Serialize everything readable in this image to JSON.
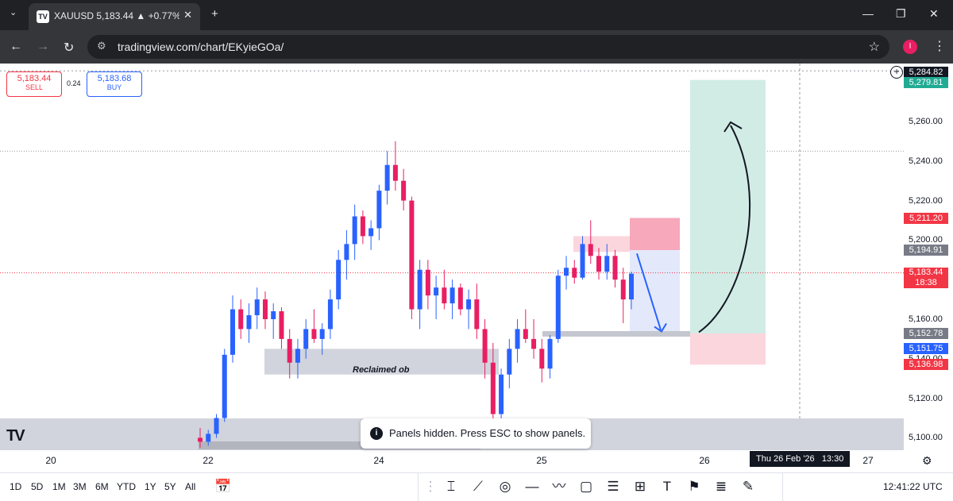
{
  "browser": {
    "tab_title": "XAUUSD 5,183.44 ▲ +0.77% Un",
    "tab_close": "✕",
    "new_tab": "+",
    "url": "tradingview.com/chart/EKyieGOa/",
    "profile_initial": "I"
  },
  "trade_panel": {
    "sell_price": "5,183.44",
    "sell_label": "SELL",
    "spread": "0.24",
    "buy_price": "5,183.68",
    "buy_label": "BUY"
  },
  "price_axis": {
    "labels": [
      "5,260.00",
      "5,240.00",
      "5,220.00",
      "5,200.00",
      "5,160.00",
      "5,120.00",
      "5,100.00"
    ],
    "crosshair_price": "5,284.82",
    "tp_price": "5,279.81",
    "entry_zone_top": "5,211.20",
    "entry_zone_bottom": "5,194.91",
    "last_price": "5,183.44",
    "countdown": "18:38",
    "stop_level": "5,152.78",
    "support_level": "5,151.75",
    "hidden_label": "5,140.00",
    "sl_price": "5,136.98"
  },
  "time_axis": {
    "labels": [
      "20",
      "22",
      "24",
      "25",
      "26",
      "27"
    ],
    "crosshair_time": "Thu 26 Feb '26   13:30"
  },
  "annotations": {
    "reclaimed_ob": "Reclaimed ob"
  },
  "toast": {
    "text": "Panels hidden. Press ESC to show panels."
  },
  "bottom_toolbar": {
    "ranges": [
      "1D",
      "5D",
      "1M",
      "3M",
      "6M",
      "YTD",
      "1Y",
      "5Y",
      "All"
    ],
    "clock": "12:41:22 UTC"
  },
  "colors": {
    "bull": "#2962ff",
    "bear": "#e91e63",
    "tp_zone": "#d1ece5",
    "sl_zone": "#fbd6dd",
    "tag_red": "#f23645",
    "tag_gray": "#787b86",
    "tag_green": "#22ab94"
  },
  "icons": [
    "tradingview-logo-icon",
    "info-icon",
    "crosshair-plus-icon",
    "settings-gear-icon"
  ],
  "chart_data": {
    "type": "candlestick",
    "symbol": "XAUUSD",
    "ylim": [
      5095,
      5290
    ],
    "x_ticks": [
      "20",
      "22",
      "24",
      "25",
      "26",
      "27"
    ],
    "candles_ohlc": [
      [
        5100,
        5105,
        5095,
        5098
      ],
      [
        5098,
        5104,
        5096,
        5102
      ],
      [
        5102,
        5112,
        5100,
        5110
      ],
      [
        5110,
        5145,
        5108,
        5142
      ],
      [
        5142,
        5172,
        5138,
        5165
      ],
      [
        5165,
        5170,
        5150,
        5155
      ],
      [
        5155,
        5168,
        5148,
        5162
      ],
      [
        5162,
        5176,
        5155,
        5170
      ],
      [
        5170,
        5174,
        5155,
        5160
      ],
      [
        5160,
        5168,
        5150,
        5164
      ],
      [
        5164,
        5166,
        5145,
        5150
      ],
      [
        5150,
        5155,
        5130,
        5138
      ],
      [
        5138,
        5150,
        5130,
        5145
      ],
      [
        5145,
        5160,
        5140,
        5155
      ],
      [
        5155,
        5165,
        5148,
        5150
      ],
      [
        5150,
        5158,
        5142,
        5155
      ],
      [
        5155,
        5175,
        5150,
        5170
      ],
      [
        5170,
        5195,
        5165,
        5190
      ],
      [
        5190,
        5205,
        5180,
        5198
      ],
      [
        5198,
        5218,
        5190,
        5212
      ],
      [
        5212,
        5215,
        5198,
        5202
      ],
      [
        5202,
        5210,
        5195,
        5206
      ],
      [
        5206,
        5228,
        5200,
        5225
      ],
      [
        5225,
        5245,
        5218,
        5238
      ],
      [
        5238,
        5250,
        5225,
        5230
      ],
      [
        5230,
        5236,
        5215,
        5220
      ],
      [
        5220,
        5222,
        5160,
        5165
      ],
      [
        5165,
        5190,
        5155,
        5185
      ],
      [
        5185,
        5190,
        5165,
        5172
      ],
      [
        5172,
        5182,
        5160,
        5176
      ],
      [
        5176,
        5185,
        5165,
        5168
      ],
      [
        5168,
        5180,
        5160,
        5176
      ],
      [
        5176,
        5178,
        5162,
        5165
      ],
      [
        5165,
        5175,
        5155,
        5170
      ],
      [
        5170,
        5178,
        5150,
        5155
      ],
      [
        5155,
        5160,
        5130,
        5138
      ],
      [
        5138,
        5148,
        5108,
        5112
      ],
      [
        5112,
        5135,
        5108,
        5132
      ],
      [
        5132,
        5150,
        5125,
        5145
      ],
      [
        5145,
        5160,
        5138,
        5155
      ],
      [
        5155,
        5165,
        5148,
        5150
      ],
      [
        5150,
        5160,
        5140,
        5145
      ],
      [
        5145,
        5150,
        5128,
        5135
      ],
      [
        5135,
        5152,
        5130,
        5150
      ],
      [
        5150,
        5185,
        5148,
        5182
      ],
      [
        5182,
        5192,
        5175,
        5186
      ],
      [
        5186,
        5190,
        5178,
        5181
      ],
      [
        5181,
        5202,
        5180,
        5198
      ],
      [
        5198,
        5210,
        5188,
        5192
      ],
      [
        5192,
        5196,
        5180,
        5184
      ],
      [
        5184,
        5198,
        5180,
        5192
      ],
      [
        5192,
        5195,
        5176,
        5180
      ],
      [
        5180,
        5186,
        5158,
        5170
      ],
      [
        5170,
        5184,
        5165,
        5183
      ]
    ],
    "levels": {
      "entry_top": 5211.2,
      "entry_bottom": 5194.91,
      "last": 5183.44,
      "stop": 5152.78,
      "support": 5151.75,
      "take_profit": 5279.81,
      "stop_loss": 5136.98
    }
  }
}
